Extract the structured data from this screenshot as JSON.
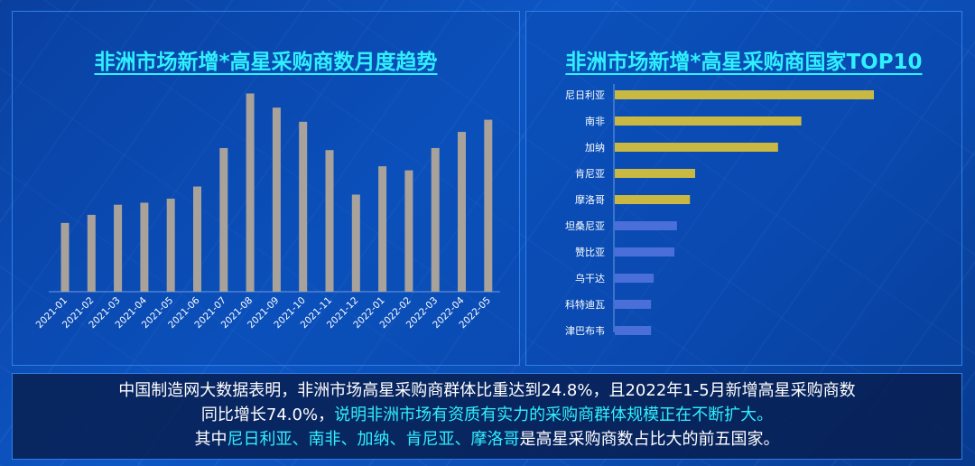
{
  "colors": {
    "title": "#2ff0ff",
    "monthly_bar": "#a9a29b",
    "top5_bar": "#c9b943",
    "other_bar": "#4a6fd8",
    "highlight_text": "#2ff0ff"
  },
  "left_chart": {
    "title": "非洲市场新增*高星采购商数月度趋势"
  },
  "right_chart": {
    "title": "非洲市场新增*高星采购商国家TOP10"
  },
  "caption": {
    "line1": "中国制造网大数据表明，非洲市场高星采购商群体比重达到24.8%，且2022年1-5月新增高星采购商数",
    "line2_plain": "同比增长74.0%，",
    "line2_highlight": "说明非洲市场有资质有实力的采购商群体规模正在不断扩大。",
    "line3_prefix": "其中",
    "line3_highlight": "尼日利亚、南非、加纳、肯尼亚、摩洛哥",
    "line3_suffix": "是高星采购商数占比大的前五国家。"
  },
  "chart_data": [
    {
      "type": "bar",
      "title": "非洲市场新增*高星采购商数月度趋势",
      "categories": [
        "2021-01",
        "2021-02",
        "2021-03",
        "2021-04",
        "2021-05",
        "2021-06",
        "2021-07",
        "2021-08",
        "2021-09",
        "2021-10",
        "2021-11",
        "2021-12",
        "2022-01",
        "2022-02",
        "2022-03",
        "2022-04",
        "2022-05"
      ],
      "values": [
        34,
        38,
        43,
        44,
        46,
        52,
        71,
        98,
        91,
        84,
        70,
        48,
        62,
        60,
        71,
        79,
        85
      ],
      "ylim": [
        0,
        100
      ],
      "grid": false,
      "legend": "none"
    },
    {
      "type": "bar",
      "orientation": "horizontal",
      "title": "非洲市场新增*高星采购商国家TOP10",
      "categories": [
        "尼日利亚",
        "南非",
        "加纳",
        "肯尼亚",
        "摩洛哥",
        "坦桑尼亚",
        "赞比亚",
        "乌干达",
        "科特迪瓦",
        "津巴布韦"
      ],
      "values": [
        100,
        72,
        63,
        31,
        29,
        24,
        23,
        15,
        14,
        14
      ],
      "top_group_size": 5,
      "xlim": [
        0,
        100
      ],
      "grid": false,
      "legend": "none"
    }
  ]
}
